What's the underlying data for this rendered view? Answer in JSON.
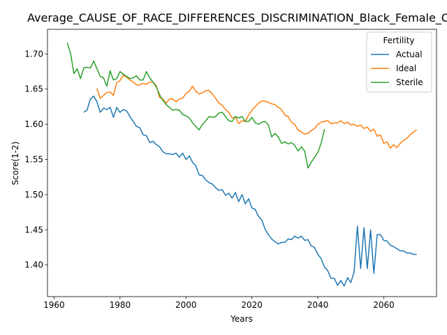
{
  "colors": {
    "Actual": "#1f77b4",
    "Ideal": "#ff7f0e",
    "Sterile": "#2ca02c"
  },
  "chart_data": {
    "type": "line",
    "title": "Average_CAUSE_OF_RACE_DIFFERENCES_DISCRIMINATION_Black_Female_C",
    "xlabel": "Years",
    "ylabel": "Score(1-2)",
    "xlim": [
      1958,
      2076
    ],
    "ylim": [
      1.355,
      1.735
    ],
    "xticks": [
      1960,
      1980,
      2000,
      2020,
      2040,
      2060
    ],
    "xtick_labels": [
      "1960",
      "1980",
      "2000",
      "2020",
      "2040",
      "2060"
    ],
    "yticks": [
      1.4,
      1.45,
      1.5,
      1.55,
      1.6,
      1.65,
      1.7
    ],
    "ytick_labels": [
      "1.40",
      "1.45",
      "1.50",
      "1.55",
      "1.60",
      "1.65",
      "1.70"
    ],
    "grid": false,
    "legend": {
      "title": "Fertility",
      "location": "top-right"
    },
    "series": [
      {
        "name": "Actual",
        "x": [
          1969,
          1970,
          1971,
          1972,
          1973,
          1974,
          1975,
          1976,
          1977,
          1978,
          1979,
          1980,
          1981,
          1982,
          1983,
          1984,
          1985,
          1986,
          1987,
          1988,
          1989,
          1990,
          1991,
          1992,
          1993,
          1994,
          1995,
          1996,
          1997,
          1998,
          1999,
          2000,
          2001,
          2002,
          2003,
          2004,
          2005,
          2006,
          2007,
          2008,
          2009,
          2010,
          2011,
          2012,
          2013,
          2014,
          2015,
          2016,
          2017,
          2018,
          2019,
          2020,
          2021,
          2022,
          2023,
          2024,
          2025,
          2026,
          2027,
          2028,
          2029,
          2030,
          2031,
          2032,
          2033,
          2034,
          2035,
          2036,
          2037,
          2038,
          2039,
          2040,
          2041,
          2042,
          2043,
          2044,
          2045,
          2046,
          2047,
          2048,
          2049,
          2050,
          2051,
          2052,
          2053,
          2054,
          2055,
          2056,
          2057,
          2058,
          2059,
          2060,
          2061,
          2062,
          2063,
          2064,
          2065,
          2066,
          2067,
          2068,
          2069,
          2070
        ],
        "values": [
          1.617,
          1.62,
          1.636,
          1.64,
          1.632,
          1.617,
          1.623,
          1.621,
          1.624,
          1.61,
          1.624,
          1.617,
          1.621,
          1.619,
          1.611,
          1.604,
          1.597,
          1.595,
          1.585,
          1.584,
          1.574,
          1.576,
          1.571,
          1.568,
          1.561,
          1.558,
          1.558,
          1.557,
          1.559,
          1.553,
          1.559,
          1.55,
          1.555,
          1.546,
          1.541,
          1.528,
          1.527,
          1.521,
          1.517,
          1.515,
          1.51,
          1.506,
          1.507,
          1.499,
          1.502,
          1.495,
          1.503,
          1.49,
          1.5,
          1.487,
          1.494,
          1.481,
          1.479,
          1.469,
          1.464,
          1.451,
          1.443,
          1.437,
          1.433,
          1.43,
          1.432,
          1.432,
          1.437,
          1.436,
          1.441,
          1.438,
          1.441,
          1.435,
          1.436,
          1.427,
          1.425,
          1.415,
          1.409,
          1.397,
          1.392,
          1.381,
          1.381,
          1.371,
          1.378,
          1.37,
          1.382,
          1.375,
          1.39,
          1.455,
          1.395,
          1.453,
          1.395,
          1.45,
          1.388,
          1.443,
          1.443,
          1.435,
          1.434,
          1.428,
          1.426,
          1.423,
          1.42,
          1.42,
          1.417,
          1.417,
          1.415,
          1.415
        ]
      },
      {
        "name": "Ideal",
        "x": [
          1973,
          1974,
          1975,
          1976,
          1977,
          1978,
          1979,
          1980,
          1981,
          1982,
          1983,
          1984,
          1985,
          1986,
          1987,
          1988,
          1989,
          1990,
          1991,
          1992,
          1993,
          1994,
          1995,
          1996,
          1997,
          1998,
          1999,
          2000,
          2001,
          2002,
          2003,
          2004,
          2005,
          2006,
          2007,
          2008,
          2009,
          2010,
          2011,
          2012,
          2013,
          2014,
          2015,
          2016,
          2017,
          2018,
          2019,
          2020,
          2021,
          2022,
          2023,
          2024,
          2025,
          2026,
          2027,
          2028,
          2029,
          2030,
          2031,
          2032,
          2033,
          2034,
          2035,
          2036,
          2037,
          2038,
          2039,
          2040,
          2041,
          2042,
          2043,
          2044,
          2045,
          2046,
          2047,
          2048,
          2049,
          2050,
          2051,
          2052,
          2053,
          2054,
          2055,
          2056,
          2057,
          2058,
          2059,
          2060,
          2061,
          2062,
          2063,
          2064,
          2065,
          2066,
          2067,
          2068,
          2069,
          2070
        ],
        "values": [
          1.651,
          1.637,
          1.641,
          1.645,
          1.646,
          1.641,
          1.659,
          1.662,
          1.67,
          1.667,
          1.663,
          1.66,
          1.656,
          1.656,
          1.658,
          1.657,
          1.66,
          1.66,
          1.655,
          1.638,
          1.636,
          1.63,
          1.636,
          1.636,
          1.632,
          1.636,
          1.637,
          1.644,
          1.647,
          1.654,
          1.647,
          1.643,
          1.645,
          1.648,
          1.648,
          1.643,
          1.637,
          1.63,
          1.627,
          1.621,
          1.617,
          1.609,
          1.61,
          1.601,
          1.605,
          1.604,
          1.613,
          1.62,
          1.625,
          1.63,
          1.633,
          1.633,
          1.631,
          1.629,
          1.628,
          1.624,
          1.621,
          1.613,
          1.611,
          1.603,
          1.6,
          1.592,
          1.589,
          1.586,
          1.587,
          1.591,
          1.594,
          1.6,
          1.603,
          1.604,
          1.605,
          1.601,
          1.602,
          1.602,
          1.605,
          1.601,
          1.603,
          1.599,
          1.6,
          1.597,
          1.599,
          1.594,
          1.596,
          1.59,
          1.593,
          1.583,
          1.585,
          1.573,
          1.575,
          1.566,
          1.571,
          1.567,
          1.573,
          1.577,
          1.58,
          1.585,
          1.589,
          1.592
        ]
      },
      {
        "name": "Sterile",
        "x": [
          1964,
          1965,
          1966,
          1967,
          1968,
          1969,
          1970,
          1971,
          1972,
          1973,
          1974,
          1975,
          1976,
          1977,
          1978,
          1979,
          1980,
          1981,
          1982,
          1983,
          1984,
          1985,
          1986,
          1987,
          1988,
          1989,
          1990,
          1991,
          1992,
          1993,
          1994,
          1995,
          1996,
          1997,
          1998,
          1999,
          2000,
          2001,
          2002,
          2003,
          2004,
          2005,
          2006,
          2007,
          2008,
          2009,
          2010,
          2011,
          2012,
          2013,
          2014,
          2015,
          2016,
          2017,
          2018,
          2019,
          2020,
          2021,
          2022,
          2023,
          2024,
          2025,
          2026,
          2027,
          2028,
          2029,
          2030,
          2031,
          2032,
          2033,
          2034,
          2035,
          2036,
          2037,
          2038,
          2039,
          2040,
          2041,
          2042
        ],
        "values": [
          1.716,
          1.701,
          1.672,
          1.679,
          1.665,
          1.68,
          1.681,
          1.68,
          1.69,
          1.679,
          1.668,
          1.666,
          1.654,
          1.676,
          1.663,
          1.665,
          1.675,
          1.671,
          1.668,
          1.665,
          1.666,
          1.669,
          1.663,
          1.663,
          1.675,
          1.666,
          1.66,
          1.653,
          1.642,
          1.634,
          1.628,
          1.624,
          1.62,
          1.621,
          1.62,
          1.614,
          1.612,
          1.609,
          1.602,
          1.597,
          1.592,
          1.6,
          1.605,
          1.611,
          1.61,
          1.611,
          1.616,
          1.617,
          1.611,
          1.605,
          1.604,
          1.611,
          1.609,
          1.611,
          1.604,
          1.604,
          1.61,
          1.602,
          1.6,
          1.603,
          1.604,
          1.599,
          1.582,
          1.587,
          1.582,
          1.573,
          1.575,
          1.572,
          1.574,
          1.57,
          1.562,
          1.568,
          1.562,
          1.538,
          1.546,
          1.553,
          1.56,
          1.573,
          1.593
        ]
      }
    ]
  }
}
